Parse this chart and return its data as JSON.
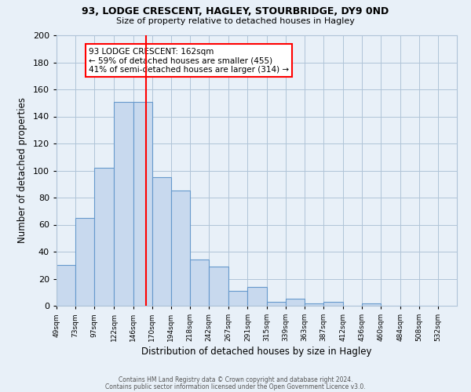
{
  "title1": "93, LODGE CRESCENT, HAGLEY, STOURBRIDGE, DY9 0ND",
  "title2": "Size of property relative to detached houses in Hagley",
  "xlabel": "Distribution of detached houses by size in Hagley",
  "ylabel": "Number of detached properties",
  "bin_labels": [
    "49sqm",
    "73sqm",
    "97sqm",
    "122sqm",
    "146sqm",
    "170sqm",
    "194sqm",
    "218sqm",
    "242sqm",
    "267sqm",
    "291sqm",
    "315sqm",
    "339sqm",
    "363sqm",
    "387sqm",
    "412sqm",
    "436sqm",
    "460sqm",
    "484sqm",
    "508sqm",
    "532sqm"
  ],
  "bin_edges": [
    49,
    73,
    97,
    122,
    146,
    170,
    194,
    218,
    242,
    267,
    291,
    315,
    339,
    363,
    387,
    412,
    436,
    460,
    484,
    508,
    532
  ],
  "bar_heights": [
    30,
    65,
    102,
    151,
    151,
    95,
    85,
    34,
    29,
    11,
    14,
    3,
    5,
    2,
    3,
    0,
    2,
    0,
    0,
    0
  ],
  "bar_color": "#c8d9ee",
  "bar_edge_color": "#6699cc",
  "property_line_x": 162,
  "property_line_color": "red",
  "annotation_line1": "93 LODGE CRESCENT: 162sqm",
  "annotation_line2": "← 59% of detached houses are smaller (455)",
  "annotation_line3": "41% of semi-detached houses are larger (314) →",
  "annotation_box_color": "white",
  "annotation_box_edge_color": "red",
  "ylim": [
    0,
    200
  ],
  "yticks": [
    0,
    20,
    40,
    60,
    80,
    100,
    120,
    140,
    160,
    180,
    200
  ],
  "grid_color": "#b0c4d8",
  "bg_color": "#e8f0f8",
  "footer1": "Contains HM Land Registry data © Crown copyright and database right 2024.",
  "footer2": "Contains public sector information licensed under the Open Government Licence v3.0."
}
